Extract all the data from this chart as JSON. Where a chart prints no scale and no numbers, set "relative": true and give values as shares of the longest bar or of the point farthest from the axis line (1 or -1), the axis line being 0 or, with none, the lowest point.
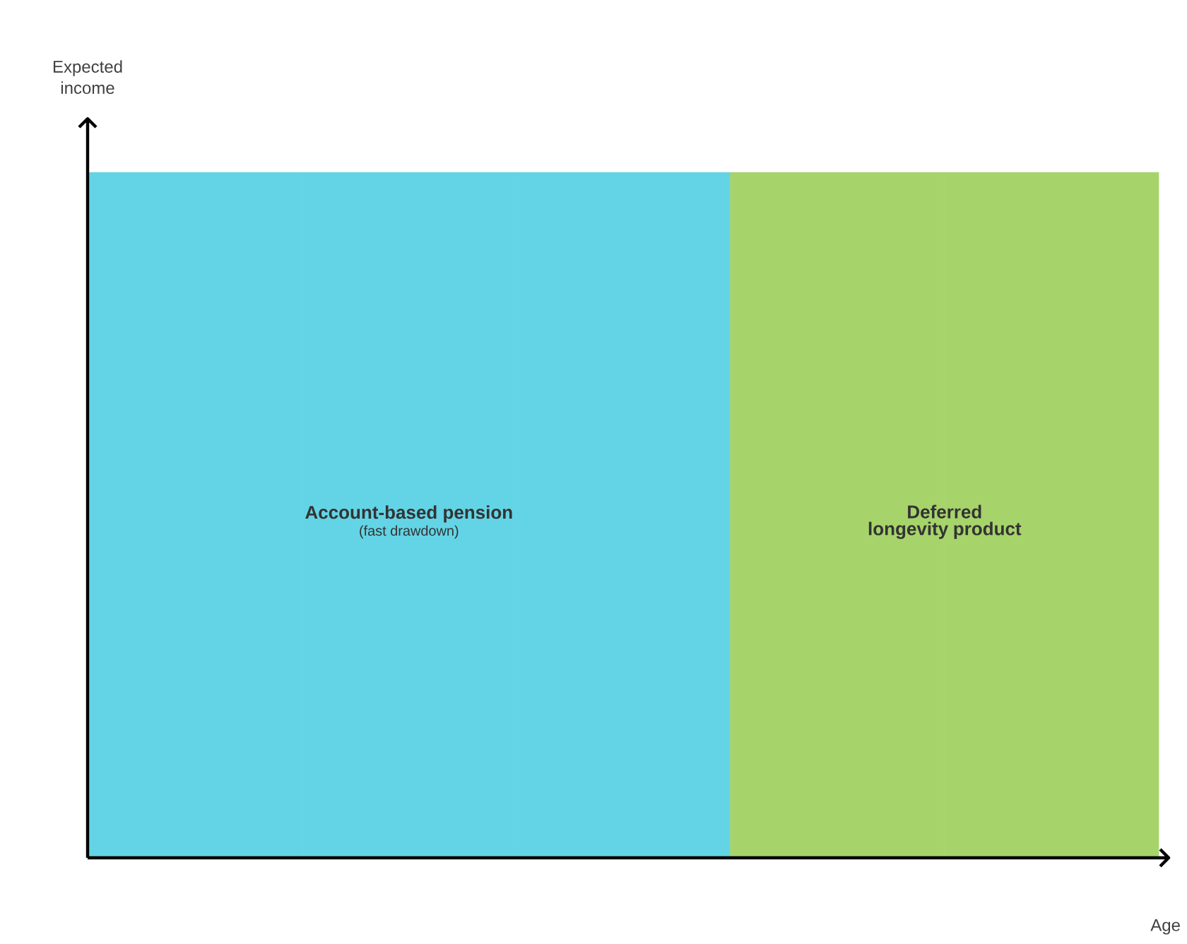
{
  "chart_data": {
    "type": "bar",
    "relative": true,
    "xlabel": "Age",
    "ylabel": "Expected income",
    "categories": [
      null,
      null,
      null,
      null,
      null
    ],
    "values": [
      1,
      1,
      1,
      1,
      1
    ],
    "colors": [
      "#63d4e5",
      "#63d4e5",
      "#63d4e5",
      "#a6d46b",
      "#a6d46b"
    ],
    "annotations": [
      "Account-based pension",
      "(fast drawdown)",
      "Deferred longevity product"
    ]
  }
}
